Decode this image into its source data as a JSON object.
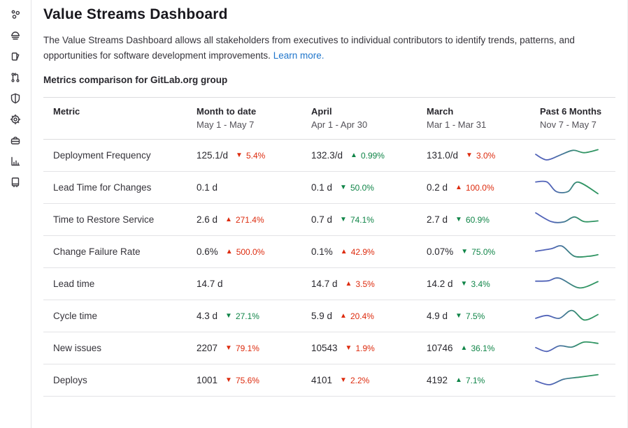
{
  "page": {
    "title": "Value Streams Dashboard",
    "description": "The Value Streams Dashboard allows all stakeholders from executives to individual contributors to identify trends, patterns, and opportunities for software development improvements.",
    "learn_more": "Learn more.",
    "section_heading": "Metrics comparison for GitLab.org group"
  },
  "sidebar": {
    "icons": [
      "manage-icon",
      "plan-icon",
      "code-icon",
      "merge-request-icon",
      "secure-icon",
      "operate-icon",
      "deploy-icon",
      "analytics-icon",
      "documentation-icon"
    ]
  },
  "colors": {
    "red": "#dd2b0e",
    "green": "#108548",
    "link": "#1f75cb",
    "spark_blue": "#5163b8",
    "spark_green": "#2f9462"
  },
  "table": {
    "columns": [
      {
        "label": "Metric",
        "sub": ""
      },
      {
        "label": "Month to date",
        "sub": "May 1 - May 7"
      },
      {
        "label": "April",
        "sub": "Apr 1 - Apr 30"
      },
      {
        "label": "March",
        "sub": "Mar 1 - Mar 31"
      },
      {
        "label": "Past 6 Months",
        "sub": "Nov 7 - May 7"
      }
    ],
    "rows": [
      {
        "metric": "Deployment Frequency",
        "mtd": {
          "value": "125.1/d",
          "change": "5.4%",
          "dir": "down",
          "tone": "bad"
        },
        "april": {
          "value": "132.3/d",
          "change": "0.99%",
          "dir": "up",
          "tone": "good"
        },
        "march": {
          "value": "131.0/d",
          "change": "3.0%",
          "dir": "down",
          "tone": "bad"
        },
        "spark": [
          [
            0,
            42
          ],
          [
            18,
            75
          ],
          [
            40,
            45
          ],
          [
            60,
            18
          ],
          [
            78,
            32
          ],
          [
            100,
            14
          ]
        ]
      },
      {
        "metric": "Lead Time for Changes",
        "mtd": {
          "value": "0.1 d",
          "change": null
        },
        "april": {
          "value": "0.1 d",
          "change": "50.0%",
          "dir": "down",
          "tone": "good"
        },
        "march": {
          "value": "0.2 d",
          "change": "100.0%",
          "dir": "up",
          "tone": "bad"
        },
        "spark": [
          [
            0,
            15
          ],
          [
            18,
            15
          ],
          [
            33,
            72
          ],
          [
            52,
            72
          ],
          [
            68,
            16
          ],
          [
            100,
            85
          ]
        ]
      },
      {
        "metric": "Time to Restore Service",
        "mtd": {
          "value": "2.6 d",
          "change": "271.4%",
          "dir": "up",
          "tone": "bad"
        },
        "april": {
          "value": "0.7 d",
          "change": "74.1%",
          "dir": "down",
          "tone": "good"
        },
        "march": {
          "value": "2.7 d",
          "change": "60.9%",
          "dir": "down",
          "tone": "good"
        },
        "spark": [
          [
            0,
            8
          ],
          [
            25,
            60
          ],
          [
            45,
            62
          ],
          [
            62,
            32
          ],
          [
            78,
            60
          ],
          [
            100,
            56
          ]
        ]
      },
      {
        "metric": "Change Failure Rate",
        "mtd": {
          "value": "0.6%",
          "change": "500.0%",
          "dir": "up",
          "tone": "bad"
        },
        "april": {
          "value": "0.1%",
          "change": "42.9%",
          "dir": "up",
          "tone": "bad"
        },
        "march": {
          "value": "0.07%",
          "change": "75.0%",
          "dir": "down",
          "tone": "good"
        },
        "spark": [
          [
            0,
            45
          ],
          [
            25,
            30
          ],
          [
            42,
            14
          ],
          [
            62,
            75
          ],
          [
            85,
            75
          ],
          [
            100,
            66
          ]
        ]
      },
      {
        "metric": "Lead time",
        "mtd": {
          "value": "14.7 d",
          "change": null
        },
        "april": {
          "value": "14.7 d",
          "change": "3.5%",
          "dir": "up",
          "tone": "bad"
        },
        "march": {
          "value": "14.2 d",
          "change": "3.4%",
          "dir": "down",
          "tone": "good"
        },
        "spark": [
          [
            0,
            32
          ],
          [
            20,
            30
          ],
          [
            38,
            14
          ],
          [
            70,
            72
          ],
          [
            100,
            35
          ]
        ]
      },
      {
        "metric": "Cycle time",
        "mtd": {
          "value": "4.3 d",
          "change": "27.1%",
          "dir": "down",
          "tone": "good"
        },
        "april": {
          "value": "5.9 d",
          "change": "20.4%",
          "dir": "up",
          "tone": "bad"
        },
        "march": {
          "value": "4.9 d",
          "change": "7.5%",
          "dir": "down",
          "tone": "good"
        },
        "spark": [
          [
            0,
            62
          ],
          [
            18,
            45
          ],
          [
            38,
            62
          ],
          [
            58,
            15
          ],
          [
            78,
            72
          ],
          [
            100,
            40
          ]
        ]
      },
      {
        "metric": "New issues",
        "mtd": {
          "value": "2207",
          "change": "79.1%",
          "dir": "down",
          "tone": "bad"
        },
        "april": {
          "value": "10543",
          "change": "1.9%",
          "dir": "down",
          "tone": "bad"
        },
        "march": {
          "value": "10746",
          "change": "36.1%",
          "dir": "up",
          "tone": "good"
        },
        "spark": [
          [
            0,
            45
          ],
          [
            18,
            68
          ],
          [
            38,
            35
          ],
          [
            58,
            42
          ],
          [
            78,
            12
          ],
          [
            100,
            20
          ]
        ]
      },
      {
        "metric": "Deploys",
        "mtd": {
          "value": "1001",
          "change": "75.6%",
          "dir": "down",
          "tone": "bad"
        },
        "april": {
          "value": "4101",
          "change": "2.2%",
          "dir": "down",
          "tone": "bad"
        },
        "march": {
          "value": "4192",
          "change": "7.1%",
          "dir": "up",
          "tone": "good"
        },
        "spark": [
          [
            0,
            52
          ],
          [
            22,
            75
          ],
          [
            45,
            42
          ],
          [
            70,
            30
          ],
          [
            100,
            15
          ]
        ]
      }
    ]
  }
}
